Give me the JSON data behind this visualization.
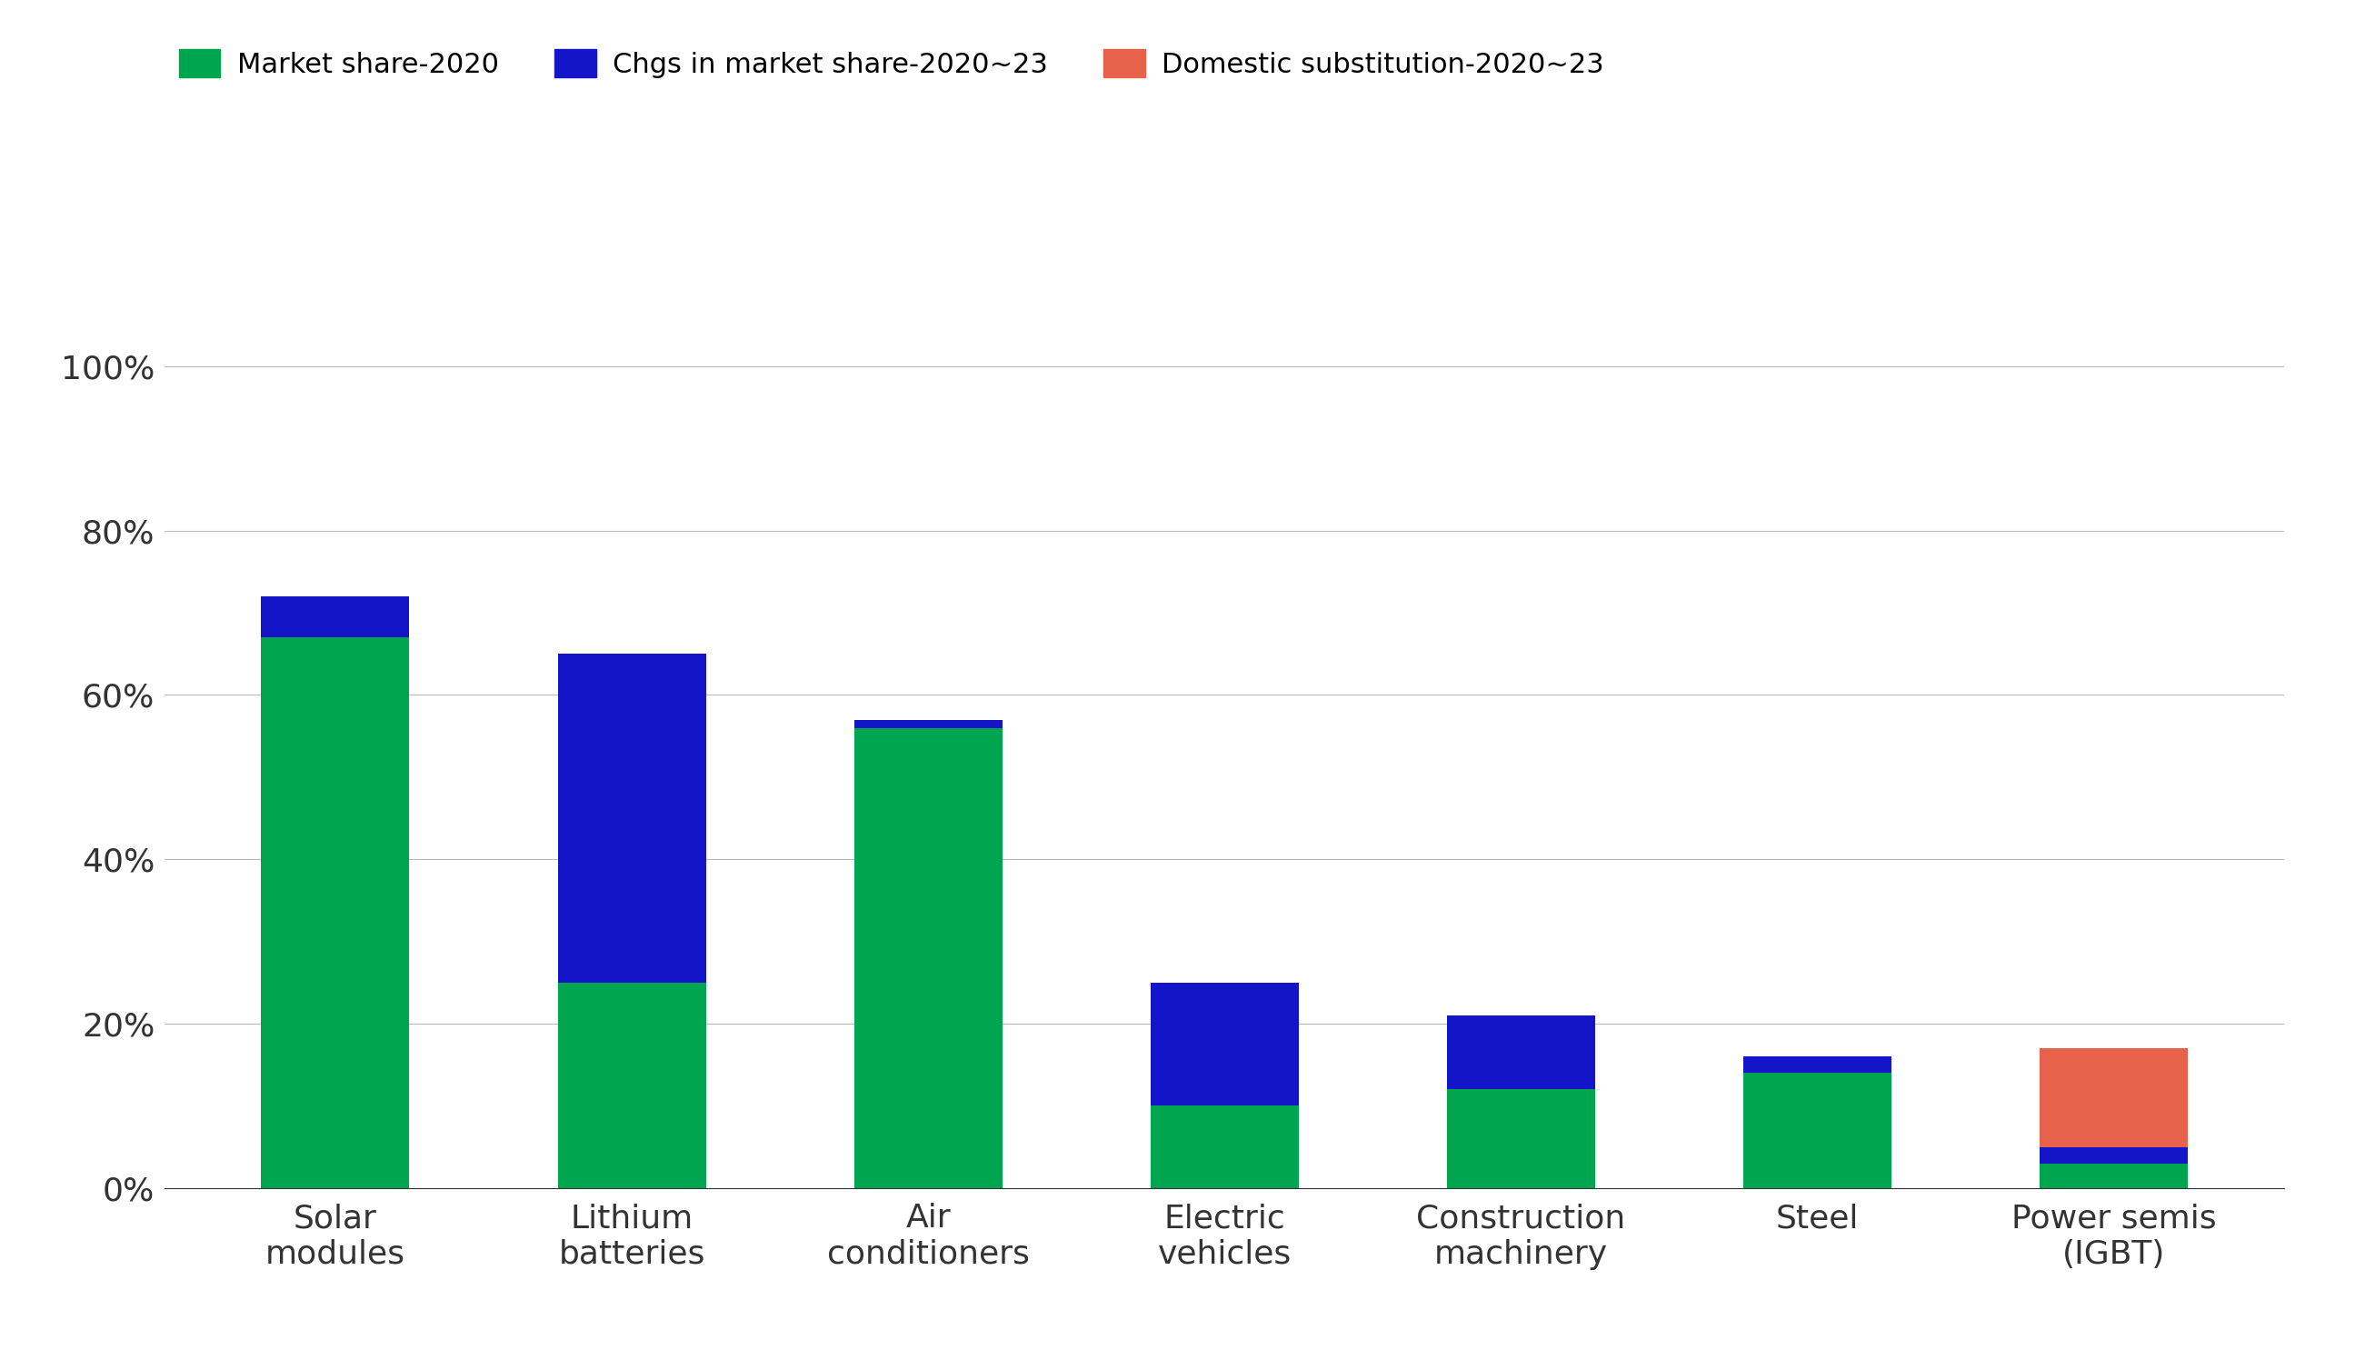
{
  "categories": [
    "Solar\nmodules",
    "Lithium\nbatteries",
    "Air\nconditioners",
    "Electric\nvehicles",
    "Construction\nmachinery",
    "Steel",
    "Power semis\n(IGBT)"
  ],
  "market_share_2020": [
    67,
    25,
    56,
    10,
    12,
    14,
    3
  ],
  "chgs_market_share": [
    5,
    40,
    1,
    15,
    9,
    2,
    2
  ],
  "domestic_substitution": [
    0,
    0,
    0,
    0,
    0,
    0,
    12
  ],
  "colors": {
    "market_share": "#00A550",
    "chgs_market_share": "#1414C8",
    "domestic_substitution": "#E8614A"
  },
  "legend_labels": [
    "Market share-2020",
    "Chgs in market share-2020~23",
    "Domestic substitution-2020~23"
  ],
  "yticks": [
    0,
    20,
    40,
    60,
    80,
    100
  ],
  "ylim": [
    0,
    115
  ],
  "background_color": "#FFFFFF",
  "grid_color": "#BBBBBB",
  "tick_fontsize": 26,
  "legend_fontsize": 22,
  "bar_width": 0.5
}
